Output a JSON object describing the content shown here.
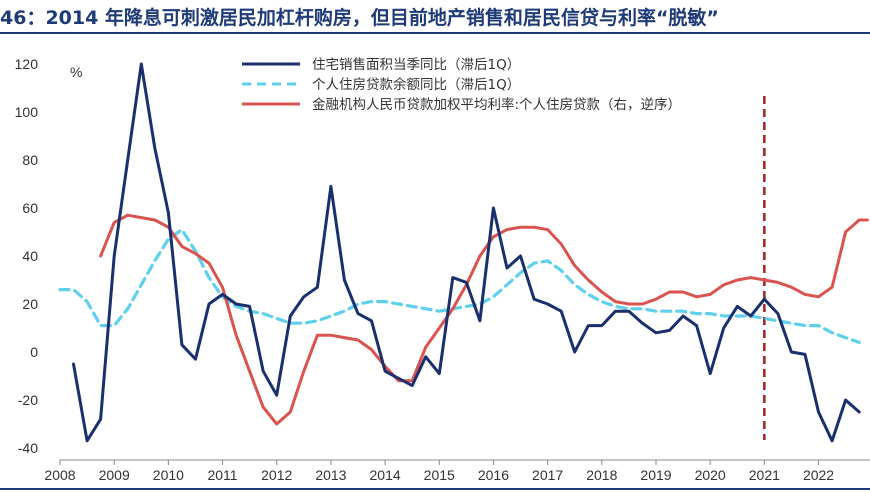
{
  "title": "46：2014 年降息可刺激居民加杠杆购房，但目前地产销售和居民信贷与利率“脱敏”",
  "chart_data": {
    "type": "line",
    "ylim": [
      -40,
      120
    ],
    "unit_label": "%",
    "yticks": [
      -40,
      -20,
      0,
      20,
      40,
      60,
      80,
      100,
      120
    ],
    "xlim": [
      2008,
      2022.9
    ],
    "xticks": [
      "2008",
      "2009",
      "2010",
      "2011",
      "2012",
      "2013",
      "2014",
      "2015",
      "2016",
      "2017",
      "2018",
      "2019",
      "2020",
      "2021",
      "2022"
    ],
    "grid": false,
    "legend_position": "top",
    "marker_line": {
      "x": 2021.0,
      "style": "dashed",
      "color": "#a32020"
    },
    "series": [
      {
        "name": "住宅销售面积当季同比（滞后1Q）",
        "color": "#1a2f6e",
        "style": "solid",
        "x": [
          2008.25,
          2008.5,
          2008.75,
          2009.0,
          2009.25,
          2009.5,
          2009.75,
          2010.0,
          2010.25,
          2010.5,
          2010.75,
          2011.0,
          2011.25,
          2011.5,
          2011.75,
          2012.0,
          2012.25,
          2012.5,
          2012.75,
          2013.0,
          2013.25,
          2013.5,
          2013.75,
          2014.0,
          2014.25,
          2014.5,
          2014.75,
          2015.0,
          2015.25,
          2015.5,
          2015.75,
          2016.0,
          2016.25,
          2016.5,
          2016.75,
          2017.0,
          2017.25,
          2017.5,
          2017.75,
          2018.0,
          2018.25,
          2018.5,
          2018.75,
          2019.0,
          2019.25,
          2019.5,
          2019.75,
          2020.0,
          2020.25,
          2020.5,
          2020.75,
          2021.0,
          2021.25,
          2021.5,
          2021.75,
          2022.0,
          2022.25,
          2022.5,
          2022.75
        ],
        "values": [
          -5,
          -37,
          -28,
          40,
          80,
          120,
          85,
          58,
          3,
          -3,
          20,
          24,
          20,
          19,
          -8,
          -18,
          15,
          23,
          27,
          69,
          30,
          16,
          13,
          -8,
          -11,
          -14,
          -2,
          -9,
          31,
          29,
          13,
          60,
          35,
          40,
          22,
          20,
          17,
          0,
          11,
          11,
          17,
          17,
          12,
          8,
          9,
          15,
          11,
          -9,
          10,
          19,
          15,
          22,
          16,
          0,
          -1,
          -25,
          -37,
          -20,
          -25
        ]
      },
      {
        "name": "个人住房贷款余额同比（滞后1Q）",
        "color": "#5fd0ec",
        "style": "dashed",
        "x": [
          2008.0,
          2008.25,
          2008.5,
          2008.75,
          2009.0,
          2009.25,
          2009.5,
          2009.75,
          2010.0,
          2010.25,
          2010.5,
          2010.75,
          2011.0,
          2011.25,
          2011.5,
          2011.75,
          2012.0,
          2012.25,
          2012.5,
          2012.75,
          2013.0,
          2013.25,
          2013.5,
          2013.75,
          2014.0,
          2014.25,
          2014.5,
          2014.75,
          2015.0,
          2015.25,
          2015.5,
          2015.75,
          2016.0,
          2016.25,
          2016.5,
          2016.75,
          2017.0,
          2017.25,
          2017.5,
          2017.75,
          2018.0,
          2018.25,
          2018.5,
          2018.75,
          2019.0,
          2019.25,
          2019.5,
          2019.75,
          2020.0,
          2020.25,
          2020.5,
          2020.75,
          2021.0,
          2021.25,
          2021.5,
          2021.75,
          2022.0,
          2022.25,
          2022.5,
          2022.75
        ],
        "values": [
          26,
          26,
          21,
          11,
          11,
          18,
          28,
          38,
          47,
          51,
          42,
          31,
          23,
          19,
          17,
          16,
          14,
          12,
          12,
          13,
          15,
          17,
          20,
          21,
          21,
          20,
          19,
          18,
          17,
          18,
          19,
          20,
          23,
          28,
          33,
          37,
          38,
          34,
          28,
          24,
          21,
          19,
          18,
          18,
          17,
          17,
          17,
          16,
          16,
          15,
          15,
          15,
          14,
          13,
          12,
          11,
          11,
          8,
          6,
          4
        ]
      },
      {
        "name": "金融机构人民币贷款加权平均利率:个人住房贷款（右，逆序）",
        "color": "#d9534f",
        "style": "solid",
        "x": [
          2008.75,
          2009.0,
          2009.25,
          2009.5,
          2009.75,
          2010.0,
          2010.25,
          2010.5,
          2010.75,
          2011.0,
          2011.25,
          2011.5,
          2011.75,
          2012.0,
          2012.25,
          2012.5,
          2012.75,
          2013.0,
          2013.25,
          2013.5,
          2013.75,
          2014.0,
          2014.25,
          2014.5,
          2014.75,
          2015.0,
          2015.25,
          2015.5,
          2015.75,
          2016.0,
          2016.25,
          2016.5,
          2016.75,
          2017.0,
          2017.25,
          2017.5,
          2017.75,
          2018.0,
          2018.25,
          2018.5,
          2018.75,
          2019.0,
          2019.25,
          2019.5,
          2019.75,
          2020.0,
          2020.25,
          2020.5,
          2020.75,
          2021.0,
          2021.25,
          2021.5,
          2021.75,
          2022.0,
          2022.25,
          2022.5,
          2022.75,
          2022.9
        ],
        "values": [
          40,
          54,
          57,
          56,
          55,
          52,
          44,
          41,
          37,
          27,
          7,
          -8,
          -23,
          -30,
          -25,
          -8,
          7,
          7,
          6,
          5,
          1,
          -6,
          -12,
          -12,
          2,
          10,
          18,
          28,
          40,
          48,
          51,
          52,
          52,
          51,
          45,
          36,
          30,
          25,
          21,
          20,
          20,
          22,
          25,
          25,
          23,
          24,
          28,
          30,
          31,
          30,
          29,
          27,
          24,
          23,
          27,
          50,
          55,
          55
        ]
      }
    ]
  },
  "legend": [
    {
      "label": "住宅销售面积当季同比（滞后1Q）"
    },
    {
      "label": "个人住房贷款余额同比（滞后1Q）"
    },
    {
      "label": "金融机构人民币贷款加权平均利率:个人住房贷款（右，逆序）"
    }
  ]
}
